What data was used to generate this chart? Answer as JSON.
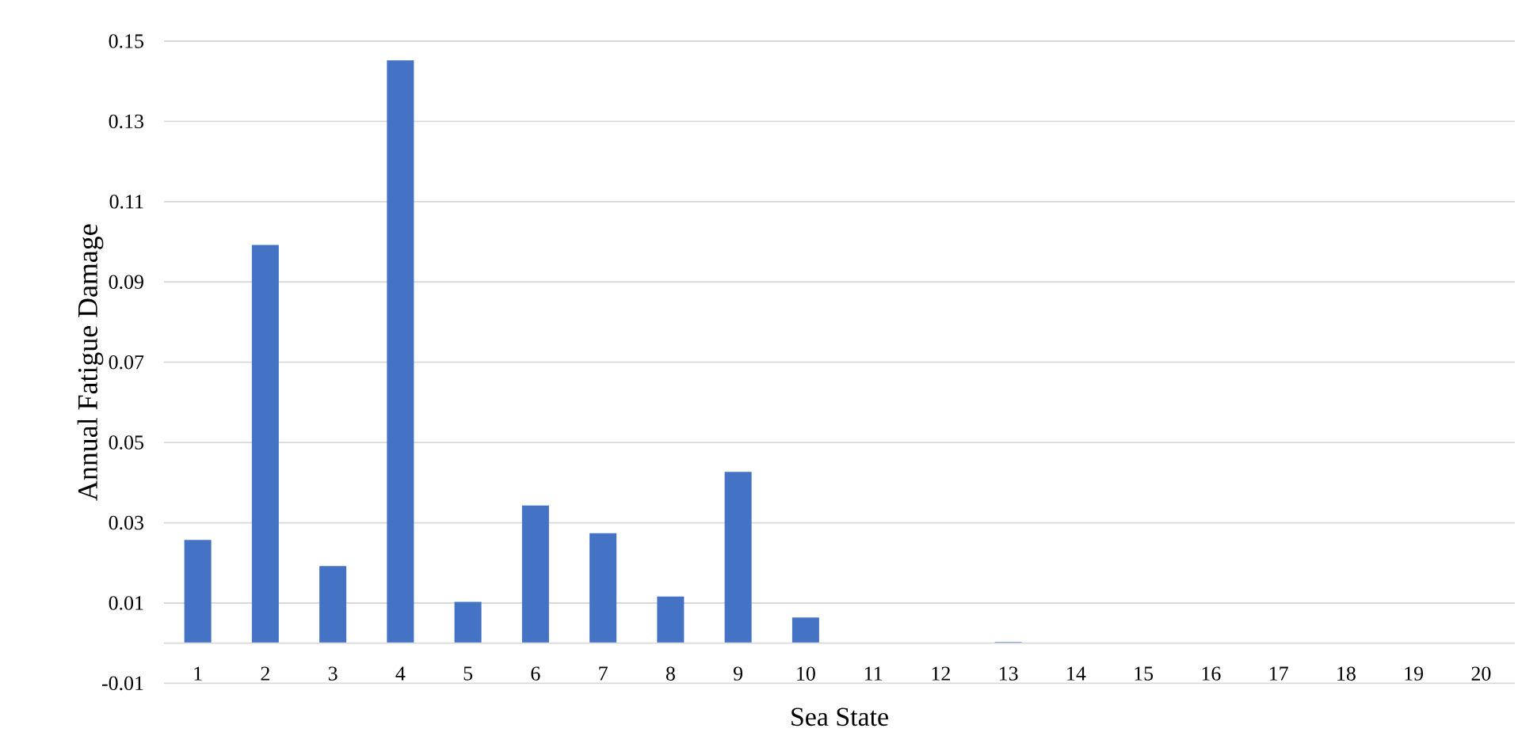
{
  "chart_data": {
    "type": "bar",
    "xlabel": "Sea State",
    "ylabel": "Annual Fatigue Damage",
    "categories": [
      "1",
      "2",
      "3",
      "4",
      "5",
      "6",
      "7",
      "8",
      "9",
      "10",
      "11",
      "12",
      "13",
      "14",
      "15",
      "16",
      "17",
      "18",
      "19",
      "20"
    ],
    "values": [
      0.0257,
      0.0992,
      0.0192,
      0.1452,
      0.0103,
      0.0343,
      0.0274,
      0.0116,
      0.0427,
      0.0064,
      0,
      0,
      0.0003,
      0,
      0,
      0,
      0,
      0,
      0,
      0
    ],
    "color": "#4472c4",
    "ylim": [
      -0.01,
      0.15
    ],
    "yticks": [
      -0.01,
      0.01,
      0.03,
      0.05,
      0.07,
      0.09,
      0.11,
      0.13,
      0.15
    ],
    "grid": "y"
  }
}
